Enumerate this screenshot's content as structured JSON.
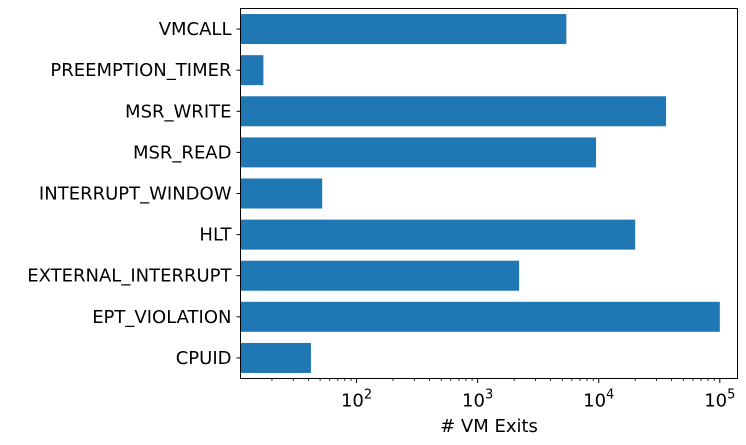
{
  "chart_data": {
    "type": "bar",
    "orientation": "horizontal",
    "xscale": "log",
    "xlim": [
      11,
      140000
    ],
    "xlabel": "# VM Exits",
    "ylabel": "",
    "title": "",
    "grid": false,
    "bar_color": "#1f77b4",
    "categories": [
      "CPUID",
      "EPT_VIOLATION",
      "EXTERNAL_INTERRUPT",
      "HLT",
      "INTERRUPT_WINDOW",
      "MSR_READ",
      "MSR_WRITE",
      "PREEMPTION_TIMER",
      "VMCALL"
    ],
    "values": [
      42,
      100000,
      2200,
      20000,
      52,
      9500,
      36000,
      17,
      5400
    ],
    "xticks": [
      {
        "value": 100,
        "base": "10",
        "exp": "2"
      },
      {
        "value": 1000,
        "base": "10",
        "exp": "3"
      },
      {
        "value": 10000,
        "base": "10",
        "exp": "4"
      },
      {
        "value": 100000,
        "base": "10",
        "exp": "5"
      }
    ]
  }
}
